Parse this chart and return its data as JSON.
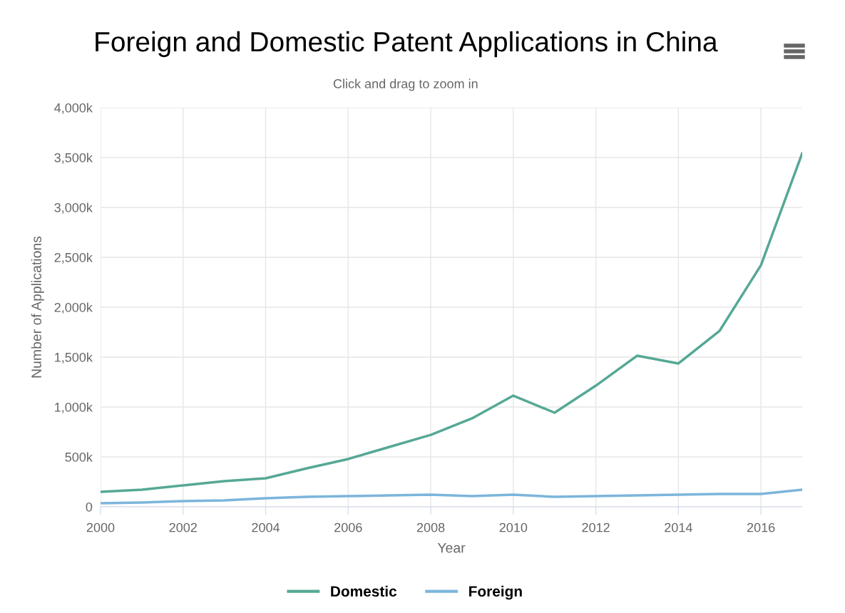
{
  "chart_data": {
    "type": "line",
    "title": "Foreign and Domestic Patent Applications in China",
    "subtitle": "Click and drag to zoom in",
    "xlabel": "Year",
    "ylabel": "Number of Applications",
    "x": [
      2000,
      2001,
      2002,
      2003,
      2004,
      2005,
      2006,
      2007,
      2008,
      2009,
      2010,
      2011,
      2012,
      2013,
      2014,
      2015,
      2016,
      2017
    ],
    "series": [
      {
        "name": "Domestic",
        "color": "#55a895",
        "values": [
          150,
          171,
          214,
          257,
          286,
          386,
          479,
          600,
          721,
          886,
          1114,
          943,
          1214,
          1514,
          1436,
          1764,
          2421,
          3543
        ]
      },
      {
        "name": "Foreign",
        "color": "#7cb5dc",
        "values": [
          36,
          43,
          57,
          64,
          86,
          100,
          107,
          114,
          121,
          107,
          121,
          100,
          107,
          114,
          121,
          129,
          129,
          171
        ]
      }
    ],
    "xlim": [
      2000,
      2017
    ],
    "xticks": [
      2000,
      2002,
      2004,
      2006,
      2008,
      2010,
      2012,
      2014,
      2016
    ],
    "ylim": [
      0,
      4000
    ],
    "yticks": [
      {
        "value": 0,
        "label": "0"
      },
      {
        "value": 500,
        "label": "500k"
      },
      {
        "value": 1000,
        "label": "1,000k"
      },
      {
        "value": 1500,
        "label": "1,500k"
      },
      {
        "value": 2000,
        "label": "2,000k"
      },
      {
        "value": 2500,
        "label": "2,500k"
      },
      {
        "value": 3000,
        "label": "3,000k"
      },
      {
        "value": 3500,
        "label": "3,500k"
      },
      {
        "value": 4000,
        "label": "4,000k"
      }
    ],
    "grid": true,
    "legend": "bottom",
    "marker": "none",
    "line_style": "solid"
  }
}
